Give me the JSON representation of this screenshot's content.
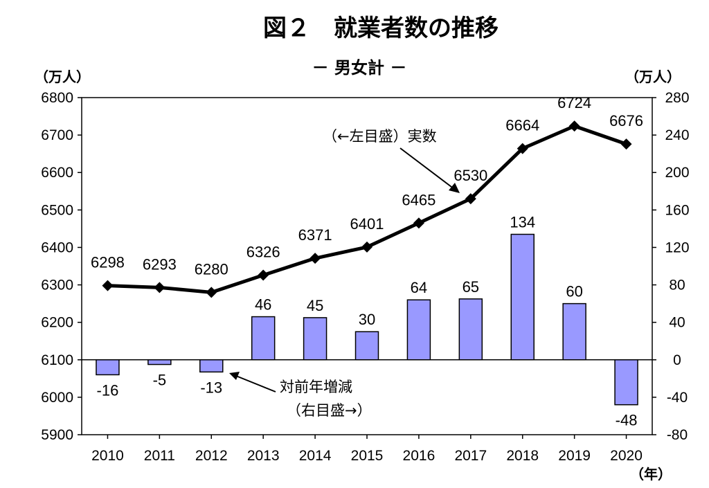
{
  "chart_data": {
    "type": "bar+line",
    "title": "図２　就業者数の推移",
    "subtitle": "－ 男女計 －",
    "left_axis_unit": "（万人）",
    "right_axis_unit": "（万人）",
    "x_unit": "（年）",
    "categories": [
      "2010",
      "2011",
      "2012",
      "2013",
      "2014",
      "2015",
      "2016",
      "2017",
      "2018",
      "2019",
      "2020"
    ],
    "left_axis": {
      "min": 5900,
      "max": 6800,
      "step": 100,
      "ticks": [
        "5900",
        "6000",
        "6100",
        "6200",
        "6300",
        "6400",
        "6500",
        "6600",
        "6700",
        "6800"
      ]
    },
    "right_axis": {
      "min": -80,
      "max": 280,
      "step": 40,
      "ticks": [
        "-80",
        "-40",
        "0",
        "40",
        "80",
        "120",
        "160",
        "200",
        "240",
        "280"
      ]
    },
    "series": [
      {
        "name": "実数",
        "type": "line",
        "axis": "left",
        "color": "#000000",
        "values": [
          6298,
          6293,
          6280,
          6326,
          6371,
          6401,
          6465,
          6530,
          6664,
          6724,
          6676
        ],
        "labels": [
          "6298",
          "6293",
          "6280",
          "6326",
          "6371",
          "6401",
          "6465",
          "6530",
          "6664",
          "6724",
          "6676"
        ]
      },
      {
        "name": "対前年増減",
        "type": "bar",
        "axis": "right",
        "color": "#9999ff",
        "values": [
          -16,
          -5,
          -13,
          46,
          45,
          30,
          64,
          65,
          134,
          60,
          -48
        ],
        "labels": [
          "-16",
          "-5",
          "-13",
          "46",
          "45",
          "30",
          "64",
          "65",
          "134",
          "60",
          "-48"
        ]
      }
    ],
    "annotations": {
      "line_note": "（←左目盛）実数",
      "bar_note_1": "対前年増減",
      "bar_note_2": "（右目盛→）"
    }
  }
}
